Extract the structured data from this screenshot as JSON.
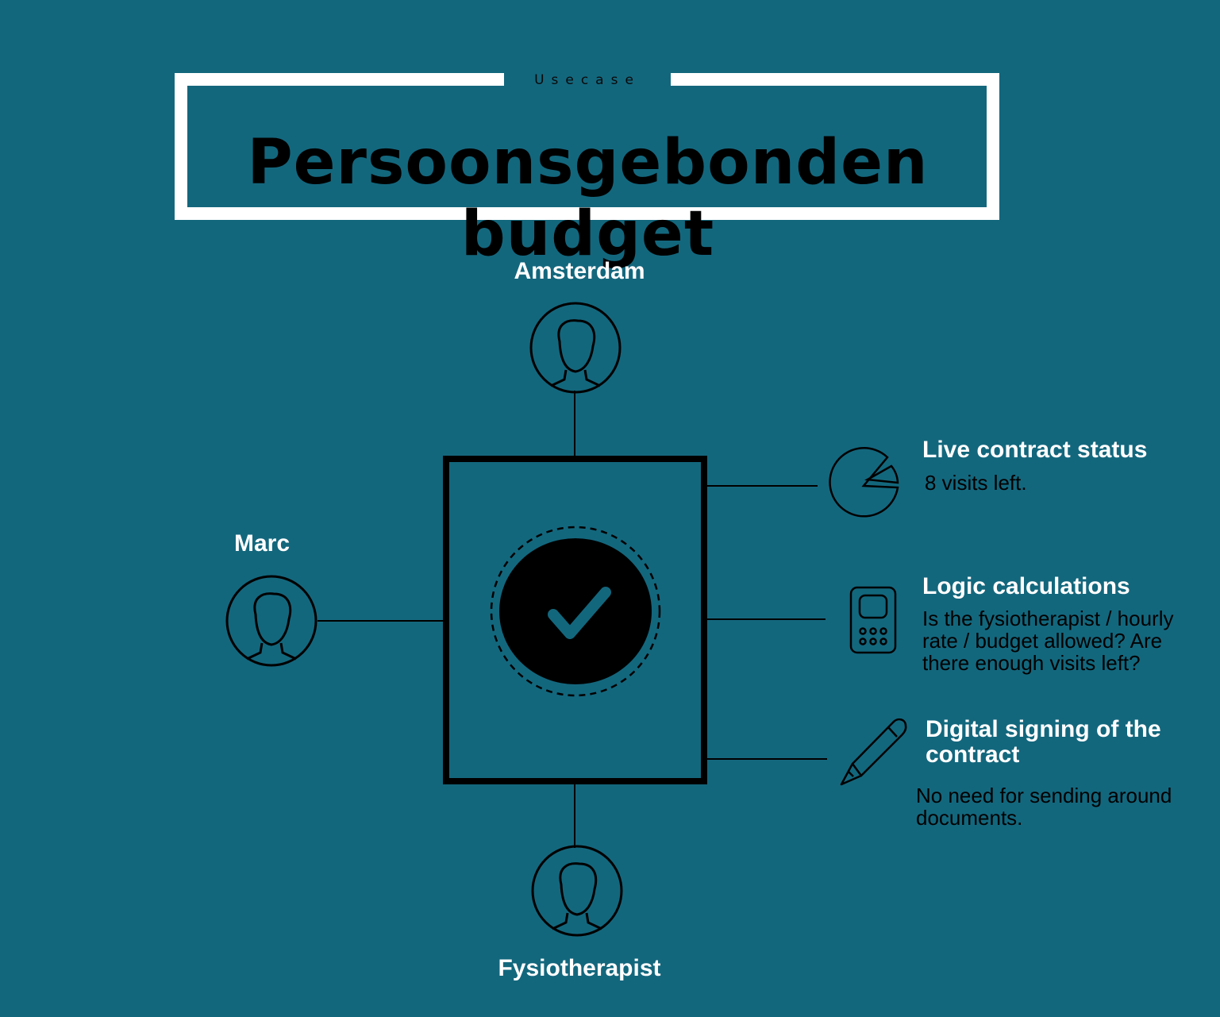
{
  "header": {
    "tag": "Usecase",
    "title": "Persoonsgebonden budget"
  },
  "actors": {
    "top": "Amsterdam",
    "left": "Marc",
    "bottom": "Fysiotherapist"
  },
  "features": {
    "status": {
      "title": "Live contract status",
      "desc": "8 visits left.",
      "icon": "pie-chart-icon"
    },
    "logic": {
      "title": "Logic calculations",
      "desc_lines": [
        "Is the  fysiotherapist / hourly",
        "rate / budget allowed? Are",
        "there enough visits  left?"
      ],
      "icon": "calculator-icon"
    },
    "signing": {
      "title_lines": [
        "Digital signing of the",
        "contract"
      ],
      "desc_lines": [
        "No need for sending around",
        "documents."
      ],
      "icon": "pencil-icon"
    }
  },
  "center": {
    "icon": "checkmark-icon"
  },
  "colors": {
    "background": "#13677d",
    "frame": "#ffffff",
    "line": "#000000"
  }
}
